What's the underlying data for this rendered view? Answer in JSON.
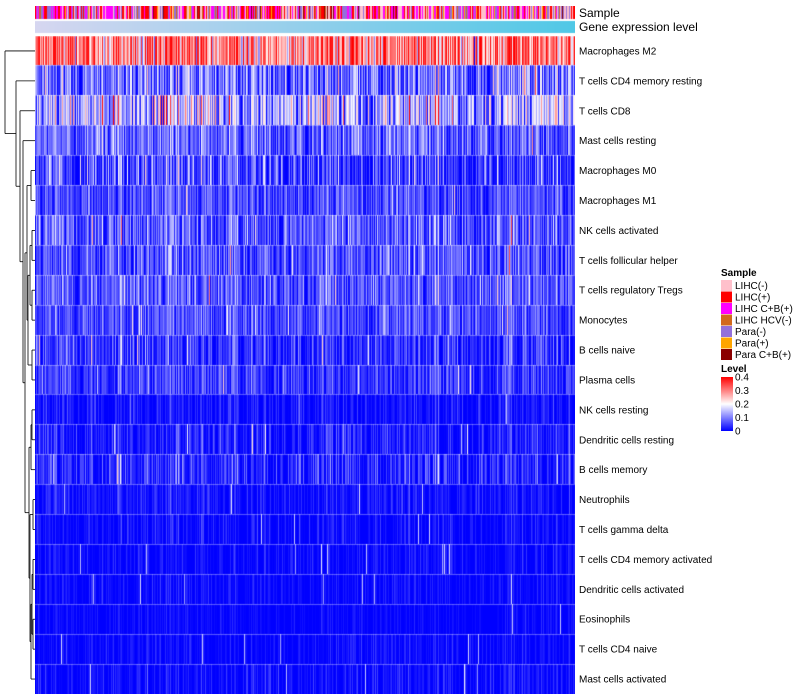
{
  "chart_data": {
    "type": "heatmap",
    "annotation_tracks": [
      "Sample",
      "Gene expression level"
    ],
    "rows": [
      {
        "label": "Macrophages M2",
        "mean": 0.3,
        "spread": 0.09
      },
      {
        "label": "T cells CD4 memory resting",
        "mean": 0.09,
        "spread": 0.07
      },
      {
        "label": "T cells CD8",
        "mean": 0.14,
        "spread": 0.09
      },
      {
        "label": "Mast cells resting",
        "mean": 0.08,
        "spread": 0.05
      },
      {
        "label": "Macrophages M0",
        "mean": 0.05,
        "spread": 0.07
      },
      {
        "label": "Macrophages M1",
        "mean": 0.06,
        "spread": 0.04
      },
      {
        "label": "NK cells activated",
        "mean": 0.07,
        "spread": 0.05
      },
      {
        "label": "T cells follicular helper",
        "mean": 0.065,
        "spread": 0.05
      },
      {
        "label": "T cells regulatory  Tregs",
        "mean": 0.07,
        "spread": 0.05
      },
      {
        "label": "Monocytes",
        "mean": 0.06,
        "spread": 0.04
      },
      {
        "label": "B cells naive",
        "mean": 0.035,
        "spread": 0.045
      },
      {
        "label": "Plasma cells",
        "mean": 0.045,
        "spread": 0.04
      },
      {
        "label": "NK cells resting",
        "mean": 0.01,
        "spread": 0.03
      },
      {
        "label": "Dendritic cells resting",
        "mean": 0.02,
        "spread": 0.035
      },
      {
        "label": "B cells memory",
        "mean": 0.03,
        "spread": 0.045
      },
      {
        "label": "Neutrophils",
        "mean": 0.01,
        "spread": 0.025
      },
      {
        "label": "T cells gamma delta",
        "mean": 0.005,
        "spread": 0.025
      },
      {
        "label": "T cells CD4 memory activated",
        "mean": 0.004,
        "spread": 0.02
      },
      {
        "label": "Dendritic cells activated",
        "mean": 0.004,
        "spread": 0.02
      },
      {
        "label": "Eosinophils",
        "mean": 0.002,
        "spread": 0.015
      },
      {
        "label": "T cells CD4 naive",
        "mean": 0.004,
        "spread": 0.02
      },
      {
        "label": "Mast cells activated",
        "mean": 0.006,
        "spread": 0.025
      }
    ],
    "legend_sample": {
      "title": "Sample",
      "entries": [
        {
          "label": "LIHC(-)",
          "color": "#ffc0cb"
        },
        {
          "label": "LIHC(+)",
          "color": "#ff0000"
        },
        {
          "label": "LIHC C+B(+)",
          "color": "#ff00ff"
        },
        {
          "label": "LIHC HCV(-)",
          "color": "#d2691e"
        },
        {
          "label": "Para(-)",
          "color": "#9370db"
        },
        {
          "label": "Para(+)",
          "color": "#ffa500"
        },
        {
          "label": "Para C+B(+)",
          "color": "#8b0000"
        }
      ]
    },
    "legend_level": {
      "title": "Level",
      "ticks": [
        "0.4",
        "0.3",
        "0.2",
        "0.1",
        "0"
      ],
      "tick_values": [
        0.4,
        0.3,
        0.2,
        0.1,
        0
      ],
      "range": [
        0,
        0.4
      ],
      "colors": [
        "#0000ff",
        "#ffffff",
        "#ff0000"
      ]
    },
    "n_samples": 540
  }
}
